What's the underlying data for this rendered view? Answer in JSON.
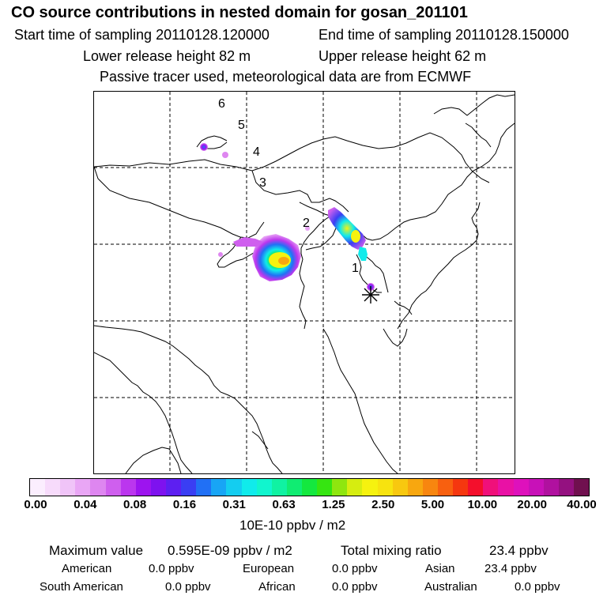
{
  "header": {
    "title": "CO  source contributions in nested domain for gosan_201101",
    "start": "Start time of sampling 20110128.120000",
    "end": "End time of sampling 20110128.150000",
    "lower": "Lower release height   82 m",
    "upper": "Upper release height   62 m",
    "note": "Passive tracer used, meteorological data are from ECMWF"
  },
  "map": {
    "labels": [
      "1",
      "2",
      "3",
      "4",
      "5",
      "6"
    ],
    "receptor_marker": "asterisk-icon"
  },
  "colorbar": {
    "colors": [
      "#fbeefe",
      "#f7dbfb",
      "#f0c4f8",
      "#e9a6f5",
      "#de86f0",
      "#cf5fee",
      "#bb36ee",
      "#9d14ef",
      "#7e12ef",
      "#5d1ff1",
      "#3a3ef3",
      "#2170f5",
      "#18a5f5",
      "#14cdf0",
      "#10ebeb",
      "#11f5ce",
      "#10f2a2",
      "#10ec72",
      "#14e83f",
      "#36e511",
      "#8fe60f",
      "#d6ed10",
      "#f6f20f",
      "#f7e30f",
      "#f8c80f",
      "#f8a70f",
      "#f8860f",
      "#f8600f",
      "#f5370f",
      "#f40f2c",
      "#f0107a",
      "#e911a5",
      "#de11bc",
      "#c811b8",
      "#b0119f",
      "#941180",
      "#70104f"
    ],
    "ticks": [
      "0.00",
      "0.04",
      "0.08",
      "0.16",
      "0.31",
      "0.63",
      "1.25",
      "2.50",
      "5.00",
      "10.00",
      "20.00",
      "40.00"
    ],
    "units": "10E-10 ppbv / m2"
  },
  "stats": {
    "max_label": "Maximum value",
    "max_value": "0.595E-09 ppbv / m2",
    "total_label": "Total mixing ratio",
    "total_value": "23.4 ppbv",
    "american_label": "American",
    "american_value": "0.0 ppbv",
    "european_label": "European",
    "european_value": "0.0 ppbv",
    "asian_label": "Asian",
    "asian_value": "23.4 ppbv",
    "south_american_label": "South American",
    "south_american_value": "0.0 ppbv",
    "african_label": "African",
    "african_value": "0.0 ppbv",
    "australian_label": "Australian",
    "australian_value": "0.0 ppbv"
  }
}
